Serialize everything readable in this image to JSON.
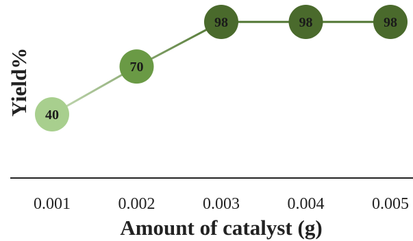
{
  "chart_data": {
    "type": "line",
    "title": "",
    "xlabel": "Amount of catalyst (g)",
    "ylabel": "Yield%",
    "categories": [
      "0.001",
      "0.002",
      "0.003",
      "0.004",
      "0.005"
    ],
    "series": [
      {
        "values": [
          40,
          70,
          98,
          98,
          98
        ]
      }
    ],
    "data_labels": [
      "40",
      "70",
      "98",
      "98",
      "98"
    ],
    "ylim": [
      0,
      100
    ],
    "grid": false,
    "legend": "none",
    "colors": {
      "markers": [
        "#a8cf8e",
        "#6a9a45",
        "#4a6a2c",
        "#4a6a2c",
        "#4a6a2c"
      ],
      "line_start": "#c6dcb6",
      "line_end": "#4f7530",
      "axis": "#222222"
    }
  }
}
